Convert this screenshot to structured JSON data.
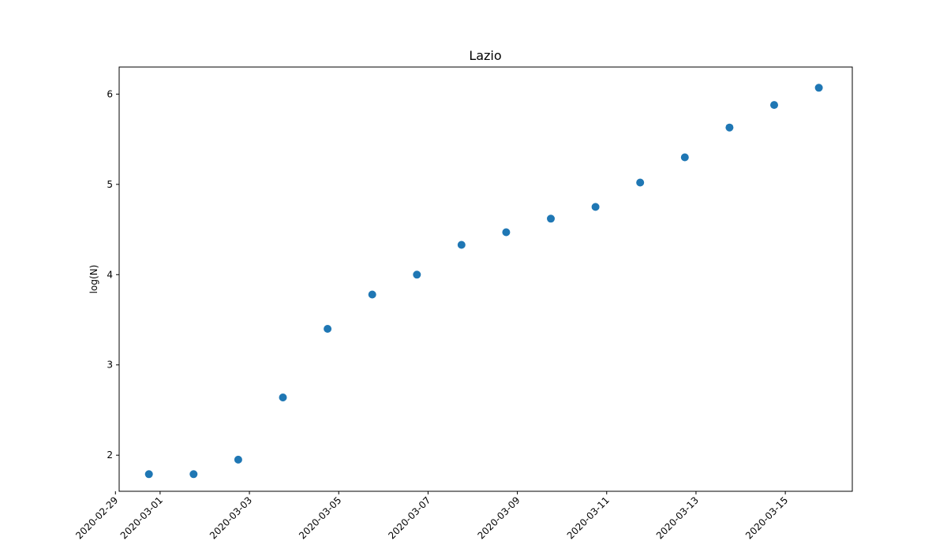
{
  "chart_data": {
    "type": "scatter",
    "title": "Lazio",
    "xlabel": "",
    "ylabel": "log(N)",
    "x": [
      "2020-02-29T18:00",
      "2020-03-01T18:00",
      "2020-03-02T18:00",
      "2020-03-03T18:00",
      "2020-03-04T18:00",
      "2020-03-05T18:00",
      "2020-03-06T18:00",
      "2020-03-07T18:00",
      "2020-03-08T18:00",
      "2020-03-09T18:00",
      "2020-03-10T18:00",
      "2020-03-11T18:00",
      "2020-03-12T18:00",
      "2020-03-13T18:00",
      "2020-03-14T18:00",
      "2020-03-15T18:00"
    ],
    "y": [
      1.79,
      1.79,
      1.95,
      2.64,
      3.4,
      3.78,
      4.0,
      4.33,
      4.47,
      4.62,
      4.75,
      5.02,
      5.3,
      5.63,
      5.88,
      6.07
    ],
    "xlim": [
      "2020-02-29T02:00",
      "2020-03-16T12:00"
    ],
    "ylim": [
      1.6,
      6.3
    ],
    "x_ticks": [
      "2020-02-29",
      "2020-03-01",
      "2020-03-03",
      "2020-03-05",
      "2020-03-07",
      "2020-03-09",
      "2020-03-11",
      "2020-03-13",
      "2020-03-15"
    ],
    "y_ticks": [
      2,
      3,
      4,
      5,
      6
    ],
    "grid": false,
    "legend": "none",
    "color": "#1f77b4"
  }
}
